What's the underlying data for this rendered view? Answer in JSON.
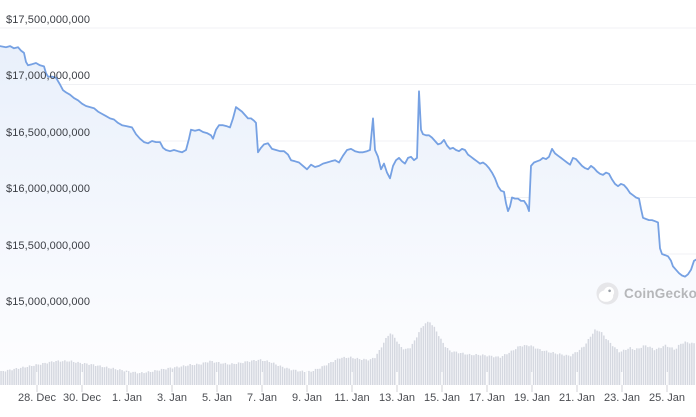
{
  "watermark": {
    "text": "CoinGecko"
  },
  "colors": {
    "background": "#ffffff",
    "line": "#76a1e3",
    "area_fill_top": "#e9f0fb",
    "area_fill_bottom": "#fefeff",
    "volume_bar": "#d5d8e0",
    "gridline": "#f0f1f4",
    "y_label": "#3b3e44",
    "x_label": "#4b4d52",
    "axis_tick": "#d8d8dd",
    "watermark_text": "#b6b7ba",
    "watermark_circle": "#e6e6e9"
  },
  "chart_data": {
    "type": "line",
    "title": "",
    "xlabel": "",
    "ylabel": "",
    "legend": "none",
    "grid": "horizontal-only",
    "y_axis": {
      "tick_labels": [
        "$17,500,000,000",
        "$17,000,000,000",
        "$16,500,000,000",
        "$16,000,000,000",
        "$15,500,000,000",
        "$15,000,000,000"
      ],
      "tick_values_billions": [
        17.5,
        17.0,
        16.5,
        16.0,
        15.5,
        15.0
      ],
      "unit": "USD"
    },
    "x_axis": {
      "tick_labels": [
        "28. Dec",
        "30. Dec",
        "1. Jan",
        "3. Jan",
        "5. Jan",
        "7. Jan",
        "9. Jan",
        "11. Jan",
        "13. Jan",
        "15. Jan",
        "17. Jan",
        "19. Jan",
        "21. Jan",
        "23. Jan",
        "25. Jan"
      ]
    },
    "series": [
      {
        "name": "market-cap",
        "unit": "billions USD",
        "x_unit": "px from left edge (time axis)",
        "points": [
          [
            0,
            17.34
          ],
          [
            6,
            17.33
          ],
          [
            10,
            17.34
          ],
          [
            14,
            17.32
          ],
          [
            18,
            17.33
          ],
          [
            21,
            17.3
          ],
          [
            24,
            17.28
          ],
          [
            26,
            17.2
          ],
          [
            28,
            17.17
          ],
          [
            32,
            17.18
          ],
          [
            36,
            17.19
          ],
          [
            40,
            17.17
          ],
          [
            44,
            17.16
          ],
          [
            46,
            17.1
          ],
          [
            48,
            17.07
          ],
          [
            52,
            17.07
          ],
          [
            56,
            17.06
          ],
          [
            60,
            17.0
          ],
          [
            63,
            16.95
          ],
          [
            66,
            16.93
          ],
          [
            70,
            16.91
          ],
          [
            74,
            16.88
          ],
          [
            78,
            16.86
          ],
          [
            82,
            16.83
          ],
          [
            86,
            16.81
          ],
          [
            90,
            16.8
          ],
          [
            94,
            16.79
          ],
          [
            98,
            16.76
          ],
          [
            102,
            16.74
          ],
          [
            106,
            16.72
          ],
          [
            110,
            16.7
          ],
          [
            114,
            16.69
          ],
          [
            118,
            16.66
          ],
          [
            122,
            16.64
          ],
          [
            127,
            16.63
          ],
          [
            132,
            16.62
          ],
          [
            136,
            16.56
          ],
          [
            140,
            16.52
          ],
          [
            144,
            16.49
          ],
          [
            148,
            16.48
          ],
          [
            152,
            16.5
          ],
          [
            156,
            16.49
          ],
          [
            160,
            16.49
          ],
          [
            163,
            16.44
          ],
          [
            166,
            16.42
          ],
          [
            170,
            16.41
          ],
          [
            174,
            16.42
          ],
          [
            178,
            16.41
          ],
          [
            182,
            16.4
          ],
          [
            186,
            16.42
          ],
          [
            189,
            16.52
          ],
          [
            191,
            16.6
          ],
          [
            195,
            16.59
          ],
          [
            199,
            16.6
          ],
          [
            203,
            16.58
          ],
          [
            207,
            16.57
          ],
          [
            211,
            16.55
          ],
          [
            213,
            16.52
          ],
          [
            216,
            16.6
          ],
          [
            219,
            16.64
          ],
          [
            223,
            16.64
          ],
          [
            227,
            16.63
          ],
          [
            230,
            16.62
          ],
          [
            233,
            16.7
          ],
          [
            236,
            16.8
          ],
          [
            239,
            16.78
          ],
          [
            242,
            16.76
          ],
          [
            245,
            16.73
          ],
          [
            248,
            16.7
          ],
          [
            251,
            16.7
          ],
          [
            254,
            16.68
          ],
          [
            256,
            16.66
          ],
          [
            258,
            16.4
          ],
          [
            261,
            16.44
          ],
          [
            264,
            16.47
          ],
          [
            268,
            16.48
          ],
          [
            272,
            16.43
          ],
          [
            276,
            16.42
          ],
          [
            280,
            16.41
          ],
          [
            284,
            16.41
          ],
          [
            288,
            16.38
          ],
          [
            291,
            16.33
          ],
          [
            295,
            16.32
          ],
          [
            299,
            16.31
          ],
          [
            303,
            16.28
          ],
          [
            307,
            16.25
          ],
          [
            311,
            16.29
          ],
          [
            315,
            16.27
          ],
          [
            319,
            16.28
          ],
          [
            323,
            16.3
          ],
          [
            327,
            16.31
          ],
          [
            331,
            16.32
          ],
          [
            335,
            16.33
          ],
          [
            339,
            16.31
          ],
          [
            343,
            16.37
          ],
          [
            347,
            16.42
          ],
          [
            351,
            16.43
          ],
          [
            355,
            16.41
          ],
          [
            359,
            16.4
          ],
          [
            363,
            16.4
          ],
          [
            367,
            16.41
          ],
          [
            370,
            16.42
          ],
          [
            373,
            16.7
          ],
          [
            375,
            16.42
          ],
          [
            378,
            16.36
          ],
          [
            381,
            16.25
          ],
          [
            384,
            16.3
          ],
          [
            387,
            16.22
          ],
          [
            390,
            16.17
          ],
          [
            393,
            16.28
          ],
          [
            396,
            16.33
          ],
          [
            399,
            16.35
          ],
          [
            402,
            16.32
          ],
          [
            405,
            16.3
          ],
          [
            408,
            16.35
          ],
          [
            411,
            16.36
          ],
          [
            414,
            16.33
          ],
          [
            417,
            16.35
          ],
          [
            419,
            16.94
          ],
          [
            421,
            16.6
          ],
          [
            423,
            16.56
          ],
          [
            426,
            16.55
          ],
          [
            429,
            16.55
          ],
          [
            432,
            16.53
          ],
          [
            435,
            16.5
          ],
          [
            438,
            16.47
          ],
          [
            441,
            16.48
          ],
          [
            444,
            16.51
          ],
          [
            447,
            16.46
          ],
          [
            450,
            16.43
          ],
          [
            453,
            16.44
          ],
          [
            456,
            16.42
          ],
          [
            459,
            16.41
          ],
          [
            462,
            16.43
          ],
          [
            465,
            16.42
          ],
          [
            468,
            16.38
          ],
          [
            471,
            16.36
          ],
          [
            474,
            16.34
          ],
          [
            477,
            16.32
          ],
          [
            480,
            16.3
          ],
          [
            483,
            16.31
          ],
          [
            486,
            16.29
          ],
          [
            489,
            16.26
          ],
          [
            492,
            16.22
          ],
          [
            495,
            16.17
          ],
          [
            498,
            16.1
          ],
          [
            501,
            16.06
          ],
          [
            504,
            16.05
          ],
          [
            506,
            15.95
          ],
          [
            508,
            15.88
          ],
          [
            510,
            15.92
          ],
          [
            512,
            16.0
          ],
          [
            515,
            15.99
          ],
          [
            518,
            15.99
          ],
          [
            521,
            15.97
          ],
          [
            524,
            15.97
          ],
          [
            527,
            15.93
          ],
          [
            529,
            15.88
          ],
          [
            531,
            16.28
          ],
          [
            534,
            16.31
          ],
          [
            537,
            16.32
          ],
          [
            540,
            16.33
          ],
          [
            543,
            16.35
          ],
          [
            546,
            16.34
          ],
          [
            549,
            16.36
          ],
          [
            552,
            16.43
          ],
          [
            555,
            16.39
          ],
          [
            558,
            16.37
          ],
          [
            561,
            16.35
          ],
          [
            564,
            16.33
          ],
          [
            567,
            16.31
          ],
          [
            570,
            16.29
          ],
          [
            573,
            16.35
          ],
          [
            576,
            16.34
          ],
          [
            579,
            16.31
          ],
          [
            582,
            16.28
          ],
          [
            585,
            16.26
          ],
          [
            588,
            16.25
          ],
          [
            591,
            16.28
          ],
          [
            594,
            16.26
          ],
          [
            597,
            16.23
          ],
          [
            600,
            16.21
          ],
          [
            603,
            16.2
          ],
          [
            606,
            16.22
          ],
          [
            609,
            16.21
          ],
          [
            612,
            16.16
          ],
          [
            615,
            16.12
          ],
          [
            618,
            16.1
          ],
          [
            621,
            16.12
          ],
          [
            624,
            16.11
          ],
          [
            627,
            16.08
          ],
          [
            630,
            16.04
          ],
          [
            633,
            16.02
          ],
          [
            636,
            16.0
          ],
          [
            639,
            15.99
          ],
          [
            641,
            15.9
          ],
          [
            643,
            15.82
          ],
          [
            646,
            15.81
          ],
          [
            649,
            15.8
          ],
          [
            652,
            15.8
          ],
          [
            655,
            15.79
          ],
          [
            658,
            15.78
          ],
          [
            660,
            15.55
          ],
          [
            662,
            15.5
          ],
          [
            665,
            15.49
          ],
          [
            668,
            15.48
          ],
          [
            671,
            15.44
          ],
          [
            673,
            15.39
          ],
          [
            676,
            15.36
          ],
          [
            679,
            15.33
          ],
          [
            682,
            15.31
          ],
          [
            685,
            15.3
          ],
          [
            688,
            15.32
          ],
          [
            691,
            15.36
          ],
          [
            694,
            15.44
          ],
          [
            696,
            15.45
          ]
        ]
      }
    ],
    "volume_profile": {
      "name": "volume",
      "unit": "relative height 0-1",
      "points": [
        [
          0,
          0.21
        ],
        [
          10,
          0.24
        ],
        [
          20,
          0.27
        ],
        [
          30,
          0.3
        ],
        [
          40,
          0.33
        ],
        [
          55,
          0.38
        ],
        [
          70,
          0.38
        ],
        [
          80,
          0.35
        ],
        [
          90,
          0.33
        ],
        [
          100,
          0.3
        ],
        [
          110,
          0.27
        ],
        [
          120,
          0.24
        ],
        [
          130,
          0.21
        ],
        [
          140,
          0.19
        ],
        [
          150,
          0.21
        ],
        [
          160,
          0.24
        ],
        [
          170,
          0.27
        ],
        [
          180,
          0.29
        ],
        [
          190,
          0.32
        ],
        [
          200,
          0.33
        ],
        [
          210,
          0.38
        ],
        [
          220,
          0.35
        ],
        [
          230,
          0.33
        ],
        [
          240,
          0.35
        ],
        [
          250,
          0.38
        ],
        [
          260,
          0.4
        ],
        [
          270,
          0.37
        ],
        [
          280,
          0.3
        ],
        [
          290,
          0.25
        ],
        [
          300,
          0.22
        ],
        [
          310,
          0.21
        ],
        [
          320,
          0.27
        ],
        [
          330,
          0.35
        ],
        [
          340,
          0.43
        ],
        [
          350,
          0.44
        ],
        [
          360,
          0.41
        ],
        [
          370,
          0.4
        ],
        [
          375,
          0.44
        ],
        [
          380,
          0.56
        ],
        [
          385,
          0.71
        ],
        [
          390,
          0.83
        ],
        [
          395,
          0.75
        ],
        [
          400,
          0.62
        ],
        [
          405,
          0.56
        ],
        [
          410,
          0.59
        ],
        [
          415,
          0.71
        ],
        [
          420,
          0.87
        ],
        [
          425,
          0.98
        ],
        [
          430,
          1.0
        ],
        [
          435,
          0.9
        ],
        [
          440,
          0.75
        ],
        [
          445,
          0.62
        ],
        [
          450,
          0.54
        ],
        [
          460,
          0.51
        ],
        [
          470,
          0.48
        ],
        [
          480,
          0.48
        ],
        [
          490,
          0.46
        ],
        [
          500,
          0.44
        ],
        [
          510,
          0.52
        ],
        [
          520,
          0.62
        ],
        [
          530,
          0.63
        ],
        [
          540,
          0.56
        ],
        [
          550,
          0.52
        ],
        [
          560,
          0.49
        ],
        [
          570,
          0.46
        ],
        [
          575,
          0.51
        ],
        [
          580,
          0.56
        ],
        [
          585,
          0.63
        ],
        [
          590,
          0.76
        ],
        [
          595,
          0.87
        ],
        [
          600,
          0.86
        ],
        [
          605,
          0.76
        ],
        [
          610,
          0.67
        ],
        [
          615,
          0.59
        ],
        [
          620,
          0.52
        ],
        [
          625,
          0.56
        ],
        [
          630,
          0.59
        ],
        [
          635,
          0.56
        ],
        [
          640,
          0.59
        ],
        [
          645,
          0.63
        ],
        [
          650,
          0.6
        ],
        [
          655,
          0.56
        ],
        [
          660,
          0.59
        ],
        [
          665,
          0.63
        ],
        [
          670,
          0.6
        ],
        [
          675,
          0.56
        ],
        [
          680,
          0.65
        ],
        [
          685,
          0.68
        ],
        [
          690,
          0.67
        ],
        [
          696,
          0.65
        ]
      ]
    }
  }
}
